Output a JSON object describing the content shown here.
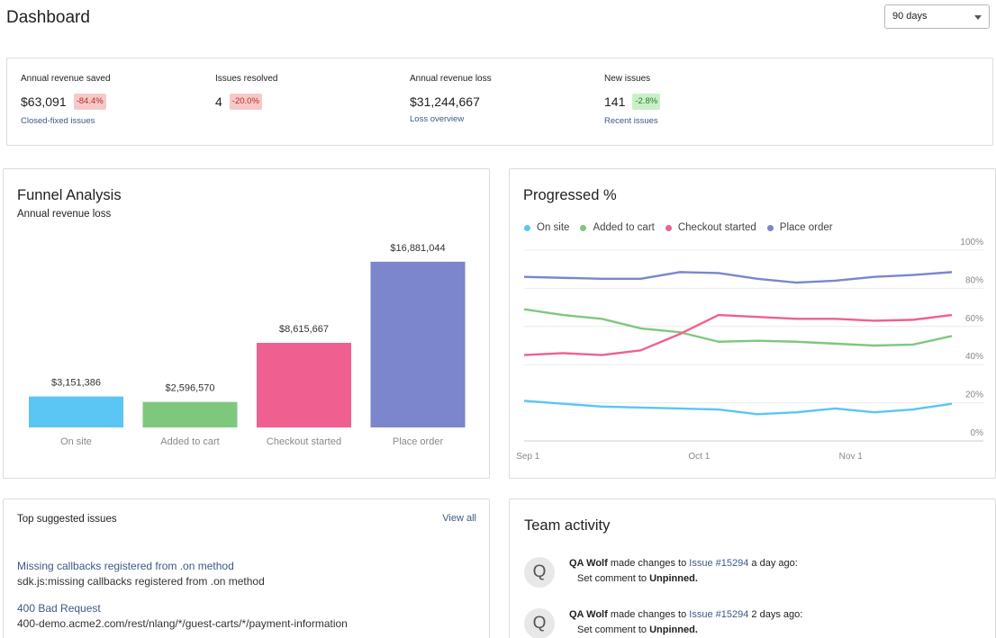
{
  "header": {
    "title": "Dashboard",
    "range": {
      "selected": "90 days"
    }
  },
  "stats": [
    {
      "label": "Annual revenue saved",
      "value": "$63,091",
      "badge": "-84.4%",
      "badge_type": "red",
      "link": "Closed-fixed issues"
    },
    {
      "label": "Issues resolved",
      "value": "4",
      "badge": "-20.0%",
      "badge_type": "red",
      "link": ""
    },
    {
      "label": "Annual revenue loss",
      "value": "$31,244,667",
      "badge": "",
      "badge_type": "",
      "link": "Loss overview"
    },
    {
      "label": "New issues",
      "value": "141",
      "badge": "-2.8%",
      "badge_type": "green",
      "link": "Recent issues"
    }
  ],
  "funnel": {
    "title": "Funnel Analysis",
    "subtitle": "Annual revenue loss"
  },
  "progress": {
    "title": "Progressed %"
  },
  "chart_data": [
    {
      "type": "bar",
      "title": "Funnel Analysis",
      "subtitle": "Annual revenue loss",
      "categories": [
        "On site",
        "Added to cart",
        "Checkout started",
        "Place order"
      ],
      "values": [
        3151386,
        2596570,
        8615667,
        16881044
      ],
      "labels": [
        "$3,151,386",
        "$2,596,570",
        "$8,615,667",
        "$16,881,044"
      ],
      "colors": [
        "#5bc5f4",
        "#7ec87e",
        "#ef6090",
        "#7b86cc"
      ],
      "ylim": [
        0,
        18000000
      ],
      "grid": false,
      "legend": "none"
    },
    {
      "type": "line",
      "title": "Progressed %",
      "ylim": [
        0,
        100
      ],
      "yticks": [
        "0%",
        "20%",
        "40%",
        "60%",
        "80%",
        "100%"
      ],
      "ytick_values": [
        0,
        20,
        40,
        60,
        80,
        100
      ],
      "xticks": [
        "Sep 1",
        "Oct 1",
        "Nov 1"
      ],
      "xtick_values": [
        0.1,
        4.5,
        8.4
      ],
      "grid": true,
      "legend": "top-left",
      "x": [
        0,
        1,
        2,
        3,
        4,
        5,
        6,
        7,
        8,
        9,
        10,
        11
      ],
      "series": [
        {
          "name": "On site",
          "color": "#5bc5f4",
          "values": [
            21,
            19.5,
            18,
            17.5,
            17,
            16.5,
            14,
            15,
            17,
            15,
            16.5,
            19.5
          ]
        },
        {
          "name": "Added to cart",
          "color": "#7ec87e",
          "values": [
            69,
            66,
            64,
            59,
            57,
            52,
            52.5,
            52,
            51,
            50,
            50.5,
            55
          ]
        },
        {
          "name": "Checkout started",
          "color": "#ef6090",
          "values": [
            45,
            46,
            45,
            47.5,
            56,
            66,
            65,
            64,
            64,
            63,
            63.5,
            66
          ]
        },
        {
          "name": "Place order",
          "color": "#7b86cc",
          "values": [
            86,
            85.5,
            85,
            85,
            88.5,
            88,
            85,
            83,
            84,
            86,
            87,
            88.5
          ]
        }
      ]
    }
  ],
  "issues": {
    "title": "Top suggested issues",
    "view_all": "View all",
    "items": [
      {
        "title": "Missing callbacks registered from .on method",
        "desc": "sdk.js:missing callbacks registered from .on method"
      },
      {
        "title": "400 Bad Request",
        "desc": "400-demo.acme2.com/rest/nlang/*/guest-carts/*/payment-information"
      }
    ]
  },
  "team": {
    "title": "Team activity",
    "items": [
      {
        "avatar": "Q",
        "user": "QA Wolf",
        "action": "made changes to",
        "issue": "Issue #15294",
        "time": "a day ago:",
        "detail_prefix": "Set comment to",
        "detail_value": "Unpinned."
      },
      {
        "avatar": "Q",
        "user": "QA Wolf",
        "action": "made changes to",
        "issue": "Issue #15294",
        "time": "2 days ago:",
        "detail_prefix": "Set comment to",
        "detail_value": "Unpinned."
      }
    ]
  }
}
